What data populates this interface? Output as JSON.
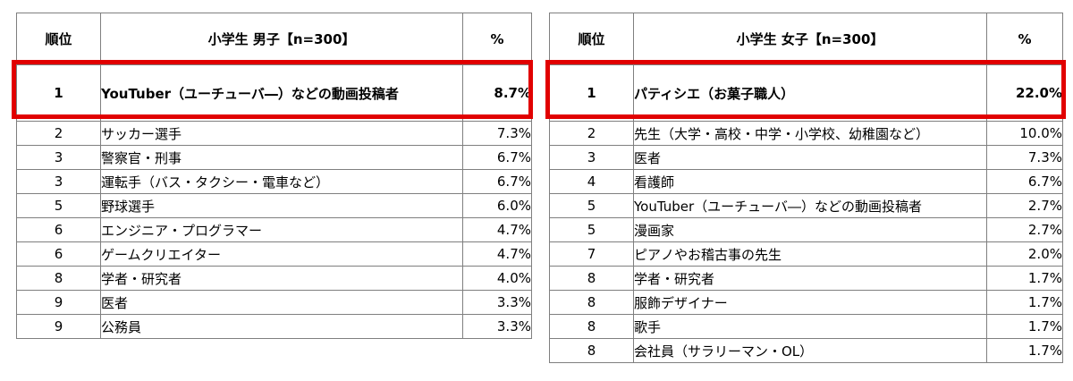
{
  "boys": {
    "header": {
      "rank": "順位",
      "title": "小学生 男子【n=300】",
      "pct": "%"
    },
    "rows": [
      {
        "rank": "1",
        "name": "YouTuber（ユーチューバ―）などの動画投稿者",
        "pct": "8.7%"
      },
      {
        "rank": "2",
        "name": "サッカー選手",
        "pct": "7.3%"
      },
      {
        "rank": "3",
        "name": "警察官・刑事",
        "pct": "6.7%"
      },
      {
        "rank": "3",
        "name": "運転手（バス・タクシー・電車など）",
        "pct": "6.7%"
      },
      {
        "rank": "5",
        "name": "野球選手",
        "pct": "6.0%"
      },
      {
        "rank": "6",
        "name": "エンジニア・プログラマー",
        "pct": "4.7%"
      },
      {
        "rank": "6",
        "name": "ゲームクリエイター",
        "pct": "4.7%"
      },
      {
        "rank": "8",
        "name": "学者・研究者",
        "pct": "4.0%"
      },
      {
        "rank": "9",
        "name": "医者",
        "pct": "3.3%"
      },
      {
        "rank": "9",
        "name": "公務員",
        "pct": "3.3%"
      }
    ]
  },
  "girls": {
    "header": {
      "rank": "順位",
      "title": "小学生 女子【n=300】",
      "pct": "%"
    },
    "rows": [
      {
        "rank": "1",
        "name": "パティシエ（お菓子職人）",
        "pct": "22.0%"
      },
      {
        "rank": "2",
        "name": "先生（大学・高校・中学・小学校、幼稚園など）",
        "pct": "10.0%"
      },
      {
        "rank": "3",
        "name": "医者",
        "pct": "7.3%"
      },
      {
        "rank": "4",
        "name": "看護師",
        "pct": "6.7%"
      },
      {
        "rank": "5",
        "name": "YouTuber（ユーチューバ―）などの動画投稿者",
        "pct": "2.7%"
      },
      {
        "rank": "5",
        "name": "漫画家",
        "pct": "2.7%"
      },
      {
        "rank": "7",
        "name": "ピアノやお稽古事の先生",
        "pct": "2.0%"
      },
      {
        "rank": "8",
        "name": "学者・研究者",
        "pct": "1.7%"
      },
      {
        "rank": "8",
        "name": "服飾デザイナー",
        "pct": "1.7%"
      },
      {
        "rank": "8",
        "name": "歌手",
        "pct": "1.7%"
      },
      {
        "rank": "8",
        "name": "会社員（サラリーマン・OL）",
        "pct": "1.7%"
      }
    ]
  },
  "colors": {
    "highlight": "#e10000",
    "border": "#7f7f7f"
  }
}
